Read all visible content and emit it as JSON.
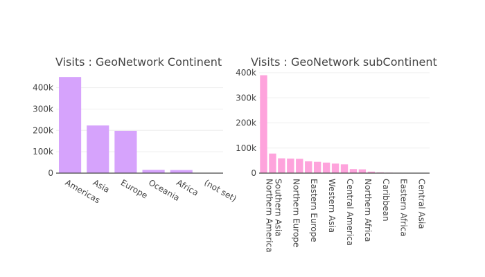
{
  "chart_data": [
    {
      "type": "bar",
      "title": "Visits : GeoNetwork Continent",
      "xlabel": "",
      "ylabel": "",
      "color": "#d6a3fc",
      "categories": [
        "Americas",
        "Asia",
        "Europe",
        "Oceania",
        "Africa",
        "(not set)"
      ],
      "values": [
        450000,
        223000,
        198000,
        15500,
        14500,
        1000
      ],
      "ylim": [
        0,
        470000
      ],
      "yticks": [
        0,
        100000,
        200000,
        300000,
        400000
      ],
      "ytick_labels": [
        "0",
        "100k",
        "200k",
        "300k",
        "400k"
      ],
      "xtick_rotation": 30,
      "grid": true
    },
    {
      "type": "bar",
      "title": "Visits : GeoNetwork subContinent",
      "xlabel": "",
      "ylabel": "",
      "color": "#fea3dc",
      "categories": [
        "Northern America",
        "Southern Asia",
        "",
        "Northern Europe",
        "",
        "Eastern Europe",
        "",
        "Western Asia",
        "",
        "Central America",
        "",
        "Northern Africa",
        "",
        "Caribbean",
        "",
        "Eastern Africa",
        "",
        "Central Asia",
        ""
      ],
      "values": [
        390000,
        78000,
        59000,
        58000,
        57000,
        47000,
        45000,
        42000,
        38000,
        35000,
        16000,
        15000,
        6000,
        3000,
        2000,
        1500,
        1200,
        1000,
        500
      ],
      "ylim": [
        0,
        400000
      ],
      "yticks": [
        0,
        100000,
        200000,
        300000,
        400000
      ],
      "ytick_labels": [
        "0",
        "100k",
        "200k",
        "300k",
        "400k"
      ],
      "xtick_rotation": 90,
      "grid": true
    }
  ]
}
